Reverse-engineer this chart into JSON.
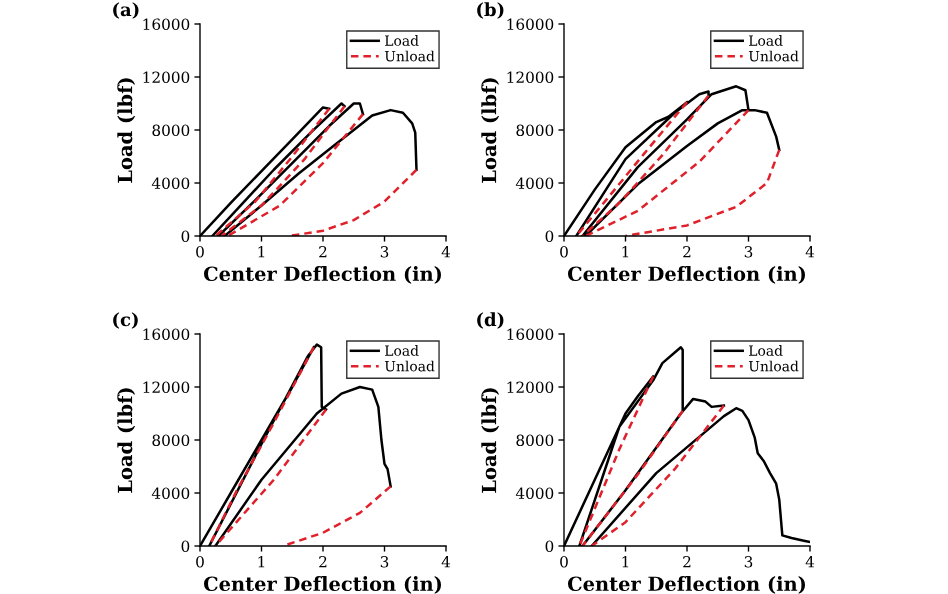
{
  "chart_data": [
    {
      "type": "line",
      "title": "(a)",
      "xlabel": "Center Deflection (in)",
      "ylabel": "Load (lbf)",
      "xlim": [
        0,
        4
      ],
      "ylim": [
        0,
        16000
      ],
      "xticks": [
        0,
        1,
        2,
        3,
        4
      ],
      "yticks": [
        0,
        4000,
        8000,
        12000,
        16000
      ],
      "legend": "top right",
      "series": [
        {
          "name": "Load",
          "color": "#000000",
          "line_style": "solid",
          "x": [
            0,
            0.5,
            1,
            1.5,
            2.0,
            2.1,
            null,
            0.2,
            0.7,
            1.2,
            1.8,
            2.3,
            2.35,
            null,
            0.3,
            0.9,
            1.5,
            2.1,
            2.5,
            2.6,
            2.65,
            null,
            0.4,
            1.0,
            1.6,
            2.2,
            2.5,
            2.8,
            3.1,
            3.3,
            3.45,
            3.5,
            3.52
          ],
          "values": [
            0,
            2500,
            4900,
            7300,
            9700,
            9600,
            null,
            0,
            2500,
            5000,
            7800,
            10000,
            9800,
            null,
            0,
            2700,
            5500,
            8300,
            10000,
            10000,
            9200,
            null,
            0,
            2300,
            4700,
            6900,
            8000,
            9100,
            9500,
            9300,
            8500,
            7800,
            5000
          ]
        },
        {
          "name": "Unload",
          "color": "#e0202a",
          "line_style": "dashed",
          "x": [
            2.1,
            1.5,
            0.9,
            0.25,
            null,
            2.35,
            1.7,
            1.0,
            0.35,
            null,
            2.65,
            2.0,
            1.3,
            0.45,
            null,
            3.52,
            3.0,
            2.5,
            2.0,
            1.45
          ],
          "values": [
            9600,
            6000,
            2600,
            0,
            null,
            9800,
            5800,
            2300,
            0,
            null,
            9200,
            5500,
            2300,
            0,
            null,
            5000,
            2600,
            1200,
            400,
            0
          ]
        }
      ]
    },
    {
      "type": "line",
      "title": "(b)",
      "xlabel": "Center Deflection (in)",
      "ylabel": "Load (lbf)",
      "xlim": [
        0,
        4
      ],
      "ylim": [
        0,
        16000
      ],
      "xticks": [
        0,
        1,
        2,
        3,
        4
      ],
      "yticks": [
        0,
        4000,
        8000,
        12000,
        16000
      ],
      "legend": "top right",
      "series": [
        {
          "name": "Load",
          "color": "#000000",
          "line_style": "solid",
          "x": [
            0,
            0.5,
            1,
            1.5,
            1.7,
            2.0,
            null,
            0.2,
            1.0,
            1.8,
            2.2,
            2.35,
            2.35,
            null,
            0.3,
            1.2,
            2.0,
            2.4,
            2.8,
            2.95,
            3.0,
            null,
            0.35,
            1.2,
            2.0,
            2.5,
            2.9,
            3.1,
            3.3,
            3.45,
            3.5
          ],
          "values": [
            0,
            3500,
            6700,
            8600,
            9000,
            10100,
            null,
            0,
            5800,
            9300,
            10700,
            10900,
            10600,
            null,
            0,
            5200,
            8800,
            10700,
            11300,
            11000,
            9500,
            null,
            0,
            3900,
            6800,
            8500,
            9500,
            9500,
            9300,
            7500,
            6500
          ]
        },
        {
          "name": "Unload",
          "color": "#e0202a",
          "line_style": "dashed",
          "x": [
            2.0,
            1.3,
            0.7,
            0.2,
            null,
            2.35,
            1.6,
            0.9,
            0.3,
            null,
            3.0,
            2.2,
            1.2,
            0.35,
            null,
            3.5,
            3.3,
            2.8,
            2.0,
            1.0
          ],
          "values": [
            10100,
            6200,
            2800,
            0,
            null,
            10600,
            6100,
            2500,
            0,
            null,
            9500,
            5600,
            1900,
            0,
            null,
            6500,
            4000,
            2200,
            800,
            0
          ]
        }
      ]
    },
    {
      "type": "line",
      "title": "(c)",
      "xlabel": "Center Deflection (in)",
      "ylabel": "Load (lbf)",
      "xlim": [
        0,
        4
      ],
      "ylim": [
        0,
        16000
      ],
      "xticks": [
        0,
        1,
        2,
        3,
        4
      ],
      "yticks": [
        0,
        4000,
        8000,
        12000,
        16000
      ],
      "legend": "top right",
      "series": [
        {
          "name": "Load",
          "color": "#000000",
          "line_style": "solid",
          "x": [
            0,
            0.5,
            1,
            1.5,
            1.85,
            null,
            0.15,
            1.0,
            1.75,
            1.9,
            1.97,
            1.98,
            2.05,
            null,
            0.25,
            1.0,
            1.9,
            2.3,
            2.6,
            2.8,
            2.9,
            2.95,
            3.0,
            3.05,
            3.1
          ],
          "values": [
            0,
            4000,
            8000,
            12000,
            15000,
            null,
            0,
            7700,
            14300,
            15200,
            15000,
            10500,
            10300,
            null,
            0,
            5000,
            10000,
            11500,
            12000,
            11800,
            10500,
            8000,
            6200,
            5800,
            4500
          ]
        },
        {
          "name": "Unload",
          "color": "#e0202a",
          "line_style": "dashed",
          "x": [
            1.85,
            1.2,
            0.6,
            0.15,
            null,
            2.05,
            1.2,
            0.25,
            null,
            3.1,
            2.6,
            2.0,
            1.35
          ],
          "values": [
            15000,
            9300,
            4200,
            0,
            null,
            10300,
            5000,
            0,
            null,
            4500,
            2500,
            1000,
            0
          ]
        }
      ]
    },
    {
      "type": "line",
      "title": "(d)",
      "xlabel": "Center Deflection (in)",
      "ylabel": "Load (lbf)",
      "xlim": [
        0,
        4
      ],
      "ylim": [
        0,
        16000
      ],
      "xticks": [
        0,
        1,
        2,
        3,
        4
      ],
      "yticks": [
        0,
        4000,
        8000,
        12000,
        16000
      ],
      "legend": "top right",
      "series": [
        {
          "name": "Load",
          "color": "#000000",
          "line_style": "solid",
          "x": [
            0,
            0.5,
            1,
            1.2,
            1.45,
            null,
            0.25,
            0.9,
            1.45,
            1.6,
            1.9,
            1.93,
            1.93,
            null,
            0.3,
            1.0,
            1.9,
            2.1,
            2.3,
            2.4,
            2.6,
            null,
            0.45,
            1.5,
            2.6,
            2.8,
            2.9,
            3.0,
            3.1,
            3.15,
            3.25,
            3.35,
            3.45,
            3.5,
            3.55,
            3.7,
            3.9,
            4.0
          ],
          "values": [
            0,
            5000,
            10000,
            11300,
            12800,
            null,
            0,
            9000,
            12500,
            13800,
            15000,
            14800,
            10200,
            null,
            0,
            4200,
            10000,
            11100,
            10900,
            10500,
            10600,
            null,
            0,
            5500,
            9800,
            10400,
            10200,
            9500,
            8200,
            7000,
            6400,
            5500,
            4700,
            3500,
            800,
            600,
            400,
            300
          ]
        },
        {
          "name": "Unload",
          "color": "#e0202a",
          "line_style": "dashed",
          "x": [
            1.45,
            0.9,
            0.25,
            null,
            1.93,
            1.2,
            0.6,
            0.3,
            null,
            2.6,
            1.8,
            1.0,
            0.45
          ],
          "values": [
            12800,
            7300,
            0,
            null,
            10200,
            5400,
            1800,
            0,
            null,
            10600,
            5800,
            1800,
            0
          ]
        }
      ]
    }
  ]
}
